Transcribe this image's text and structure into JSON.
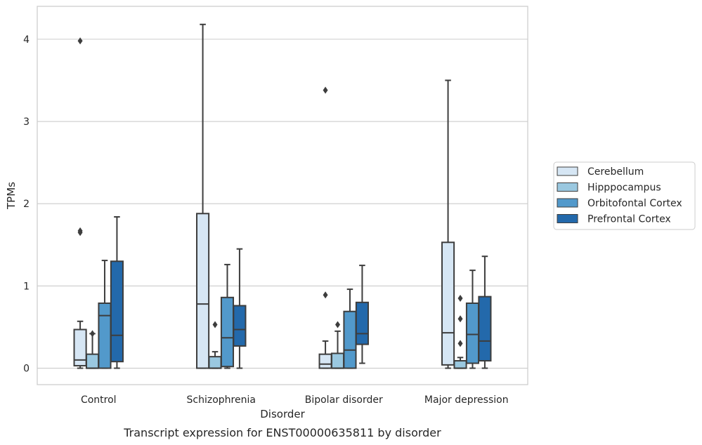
{
  "chart_data": {
    "type": "box",
    "xlabel": "Disorder",
    "ylabel": "TPMs",
    "caption": "Transcript expression for ENST00000635811 by disorder",
    "ylim": [
      -0.2,
      4.4
    ],
    "yticks": [
      "0",
      "1",
      "2",
      "3",
      "4"
    ],
    "grid": "horizontal",
    "legend_position": "right",
    "categories": [
      "Control",
      "Schizophrenia",
      "Bipolar disorder",
      "Major depression"
    ],
    "series": [
      {
        "name": "Cerebellum",
        "color": "#d6e6f4",
        "boxes": [
          {
            "min": 0.0,
            "q1": 0.03,
            "median": 0.1,
            "q3": 0.47,
            "max": 0.57,
            "outliers": [
              1.65,
              1.67,
              3.98
            ]
          },
          {
            "min": 0.0,
            "q1": 0.0,
            "median": 0.78,
            "q3": 1.88,
            "max": 4.18,
            "outliers": []
          },
          {
            "min": 0.0,
            "q1": 0.0,
            "median": 0.05,
            "q3": 0.17,
            "max": 0.33,
            "outliers": [
              0.89,
              3.38
            ]
          },
          {
            "min": 0.0,
            "q1": 0.04,
            "median": 0.43,
            "q3": 1.53,
            "max": 3.5,
            "outliers": []
          }
        ]
      },
      {
        "name": "Hipppocampus",
        "color": "#9ac8e0",
        "boxes": [
          {
            "min": 0.0,
            "q1": 0.0,
            "median": 0.0,
            "q3": 0.17,
            "max": 0.42,
            "outliers": [
              0.42
            ]
          },
          {
            "min": 0.0,
            "q1": 0.0,
            "median": 0.0,
            "q3": 0.14,
            "max": 0.2,
            "outliers": [
              0.53
            ]
          },
          {
            "min": 0.0,
            "q1": 0.0,
            "median": 0.0,
            "q3": 0.18,
            "max": 0.45,
            "outliers": [
              0.53
            ]
          },
          {
            "min": 0.0,
            "q1": 0.0,
            "median": 0.0,
            "q3": 0.09,
            "max": 0.13,
            "outliers": [
              0.3,
              0.6,
              0.85
            ]
          }
        ]
      },
      {
        "name": "Orbitofontal Cortex",
        "color": "#5299cb",
        "boxes": [
          {
            "min": 0.0,
            "q1": 0.0,
            "median": 0.64,
            "q3": 0.79,
            "max": 1.31,
            "outliers": []
          },
          {
            "min": 0.0,
            "q1": 0.02,
            "median": 0.37,
            "q3": 0.86,
            "max": 1.26,
            "outliers": []
          },
          {
            "min": 0.0,
            "q1": 0.0,
            "median": 0.22,
            "q3": 0.69,
            "max": 0.96,
            "outliers": []
          },
          {
            "min": 0.0,
            "q1": 0.06,
            "median": 0.41,
            "q3": 0.79,
            "max": 1.19,
            "outliers": []
          }
        ]
      },
      {
        "name": "Prefrontal Cortex",
        "color": "#2369ab",
        "boxes": [
          {
            "min": 0.0,
            "q1": 0.08,
            "median": 0.4,
            "q3": 1.3,
            "max": 1.84,
            "outliers": []
          },
          {
            "min": 0.0,
            "q1": 0.27,
            "median": 0.47,
            "q3": 0.76,
            "max": 1.45,
            "outliers": []
          },
          {
            "min": 0.06,
            "q1": 0.29,
            "median": 0.42,
            "q3": 0.8,
            "max": 1.25,
            "outliers": []
          },
          {
            "min": 0.0,
            "q1": 0.09,
            "median": 0.33,
            "q3": 0.87,
            "max": 1.36,
            "outliers": []
          }
        ]
      }
    ]
  }
}
